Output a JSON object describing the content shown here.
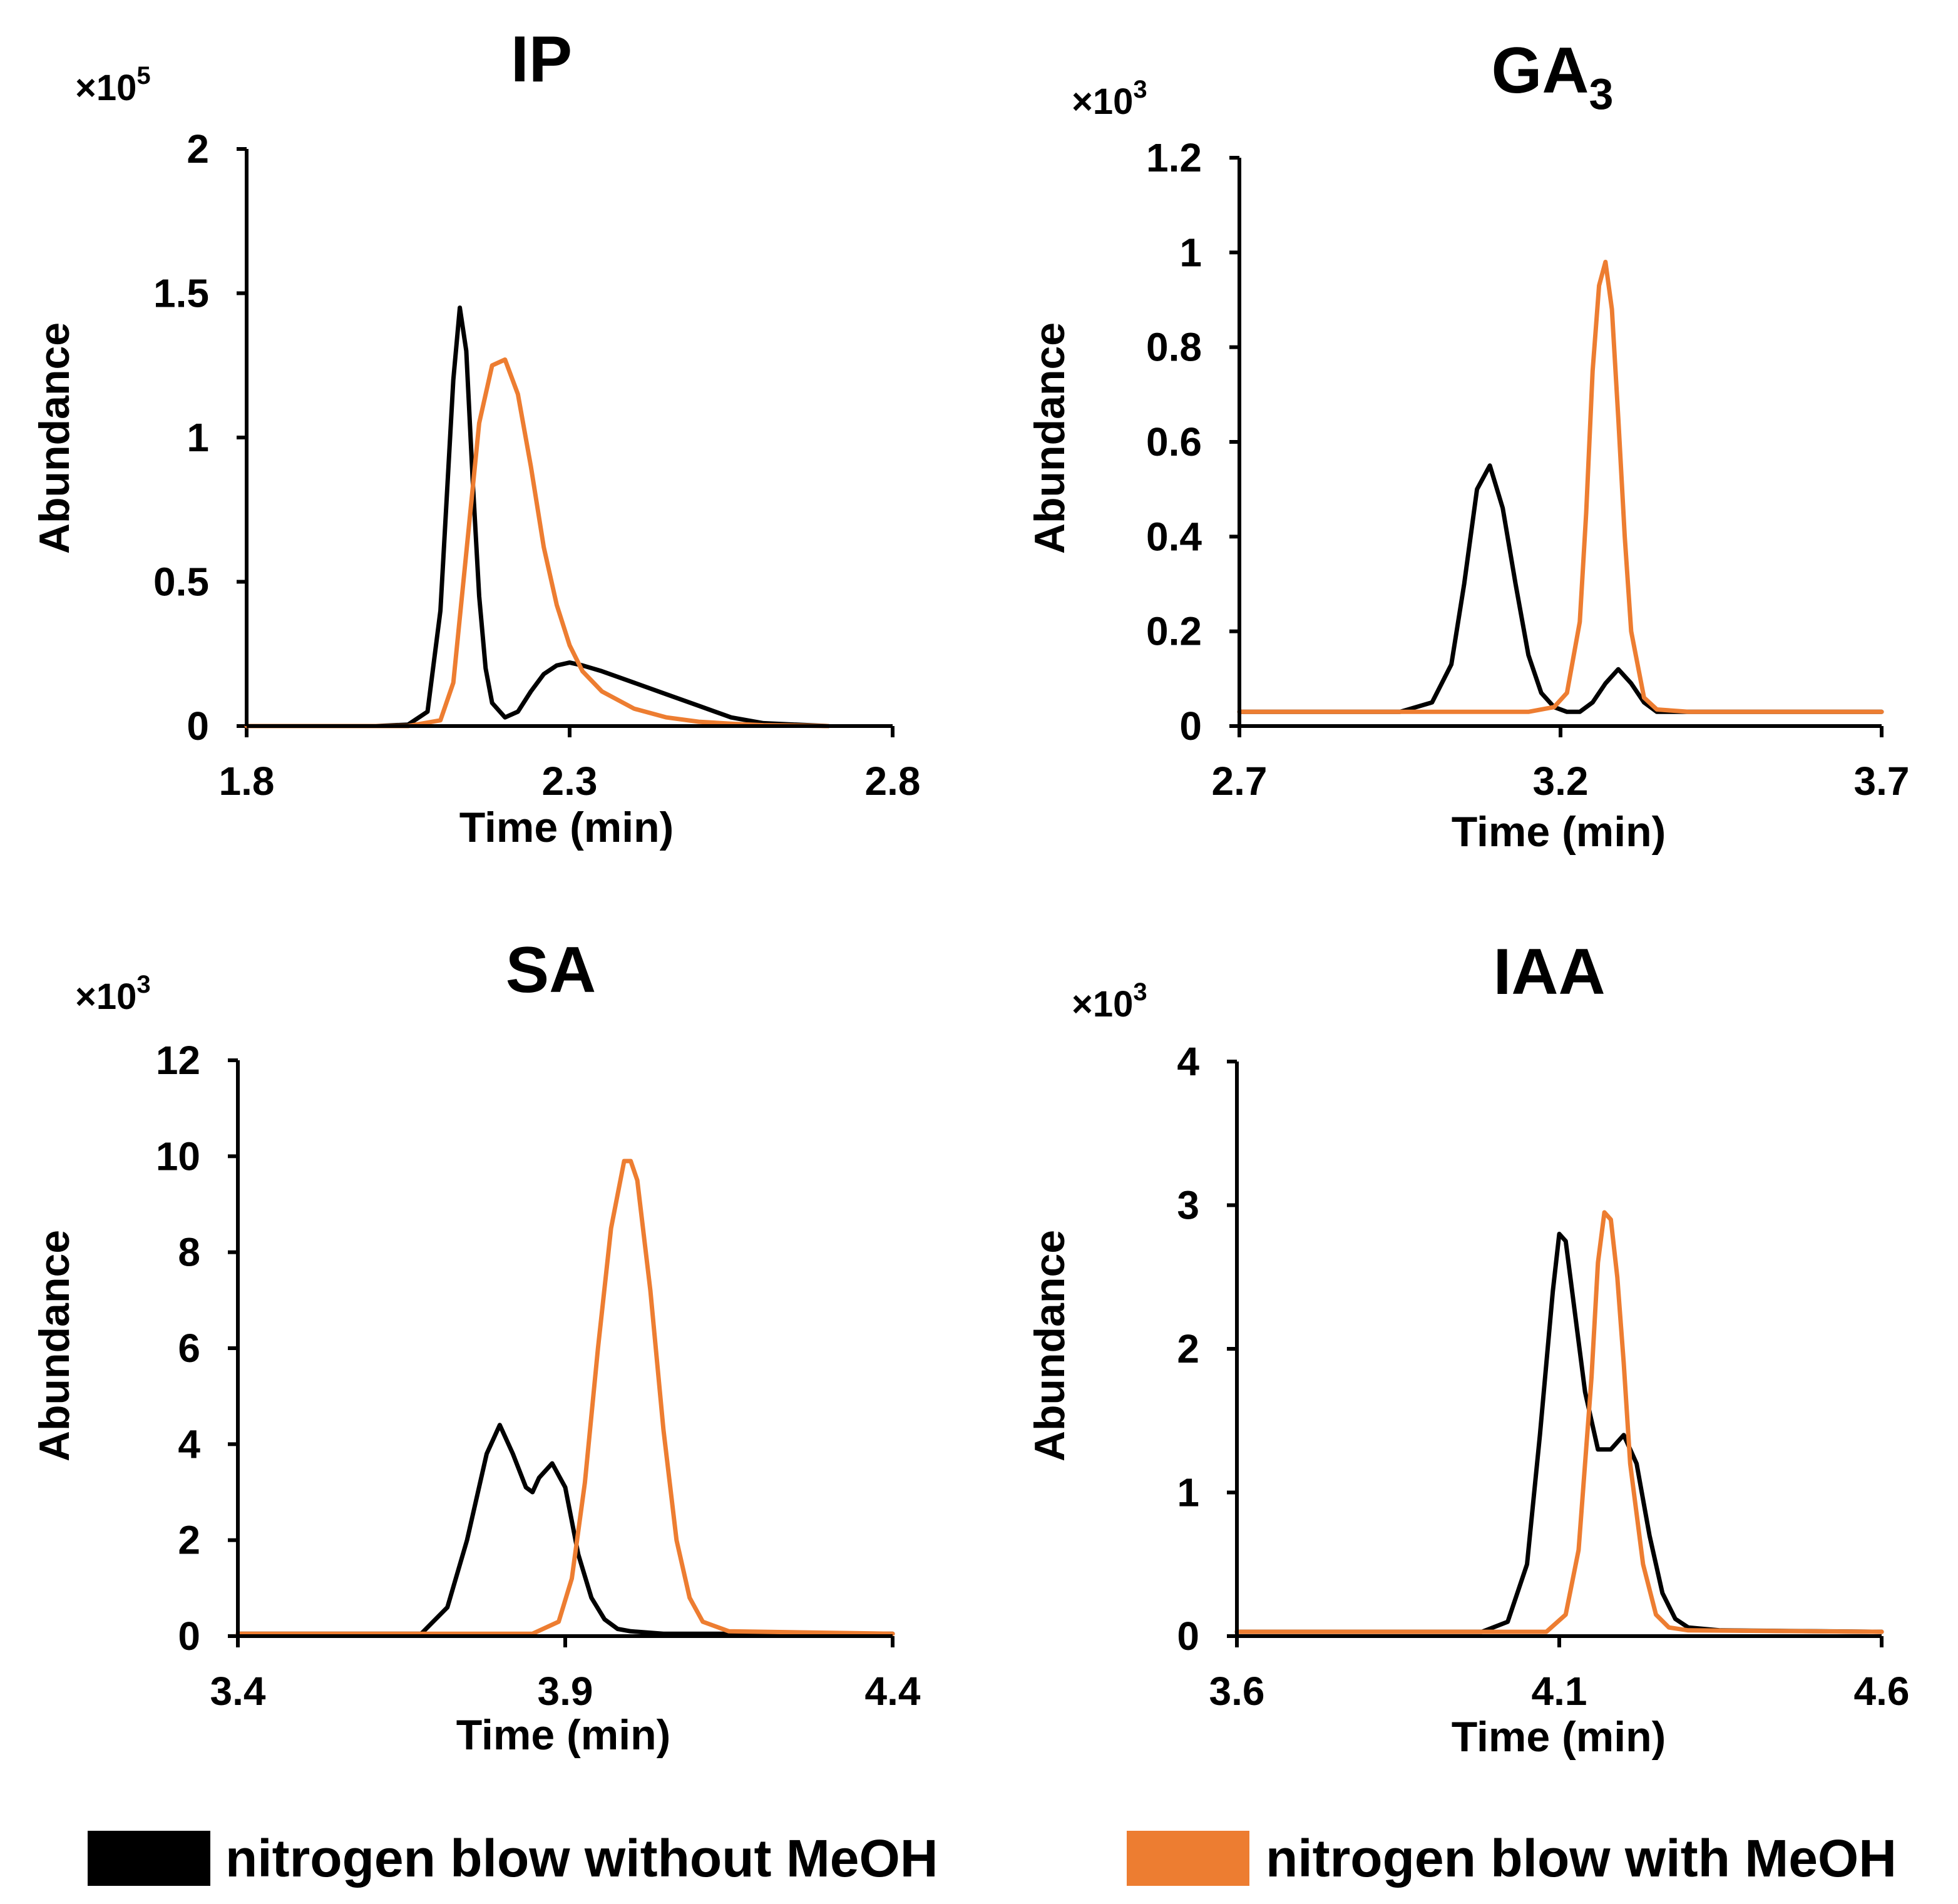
{
  "colors": {
    "without": "#000000",
    "with": "#ED7D31"
  },
  "legend": {
    "without_label": "nitrogen blow without MeOH",
    "with_label": "nitrogen blow with MeOH"
  },
  "chart_data": [
    {
      "type": "line",
      "title": "IP",
      "title_sub": "",
      "multiplier_base": "×10",
      "multiplier_exp": "5",
      "xlabel": "Time (min)",
      "ylabel": "Abundance",
      "xlim": [
        1.8,
        2.8
      ],
      "ylim": [
        0,
        2
      ],
      "xticks": [
        1.8,
        2.3,
        2.8
      ],
      "xtick_labels": [
        "1.8",
        "2.3",
        "2.8"
      ],
      "yticks": [
        0,
        0.5,
        1,
        1.5,
        2
      ],
      "ytick_labels": [
        "0",
        "0.5",
        "1",
        "1.5",
        "2"
      ],
      "series": [
        {
          "name": "nitrogen blow without MeOH",
          "color_key": "without",
          "x": [
            1.8,
            2.0,
            2.05,
            2.08,
            2.1,
            2.12,
            2.13,
            2.14,
            2.15,
            2.16,
            2.17,
            2.18,
            2.2,
            2.22,
            2.24,
            2.26,
            2.28,
            2.3,
            2.32,
            2.35,
            2.4,
            2.45,
            2.5,
            2.55,
            2.6,
            2.7
          ],
          "y": [
            0,
            0,
            0.005,
            0.05,
            0.4,
            1.2,
            1.45,
            1.3,
            0.85,
            0.45,
            0.2,
            0.08,
            0.03,
            0.05,
            0.12,
            0.18,
            0.21,
            0.22,
            0.21,
            0.19,
            0.15,
            0.11,
            0.07,
            0.03,
            0.01,
            0
          ]
        },
        {
          "name": "nitrogen blow with MeOH",
          "color_key": "with",
          "x": [
            1.8,
            2.05,
            2.1,
            2.12,
            2.14,
            2.16,
            2.18,
            2.2,
            2.22,
            2.24,
            2.26,
            2.28,
            2.3,
            2.32,
            2.35,
            2.4,
            2.45,
            2.5,
            2.55,
            2.6,
            2.7
          ],
          "y": [
            0,
            0,
            0.02,
            0.15,
            0.6,
            1.05,
            1.25,
            1.27,
            1.15,
            0.9,
            0.62,
            0.42,
            0.28,
            0.19,
            0.12,
            0.06,
            0.03,
            0.015,
            0.008,
            0.003,
            0
          ]
        }
      ]
    },
    {
      "type": "line",
      "title": "GA",
      "title_sub": "3",
      "multiplier_base": "×10",
      "multiplier_exp": "3",
      "xlabel": "Time (min)",
      "ylabel": "Abundance",
      "xlim": [
        2.7,
        3.7
      ],
      "ylim": [
        0,
        1.2
      ],
      "xticks": [
        2.7,
        3.2,
        3.7
      ],
      "xtick_labels": [
        "2.7",
        "3.2",
        "3.7"
      ],
      "yticks": [
        0,
        0.2,
        0.4,
        0.6,
        0.8,
        1,
        1.2
      ],
      "ytick_labels": [
        "0",
        "0.2",
        "0.4",
        "0.6",
        "0.8",
        "1",
        "1.2"
      ],
      "series": [
        {
          "name": "nitrogen blow without MeOH",
          "color_key": "without",
          "x": [
            2.7,
            2.95,
            3.0,
            3.03,
            3.05,
            3.07,
            3.09,
            3.11,
            3.13,
            3.15,
            3.17,
            3.19,
            3.21,
            3.23,
            3.25,
            3.27,
            3.29,
            3.31,
            3.33,
            3.35,
            3.4,
            3.7
          ],
          "y": [
            0.03,
            0.03,
            0.05,
            0.13,
            0.3,
            0.5,
            0.55,
            0.46,
            0.3,
            0.15,
            0.07,
            0.04,
            0.03,
            0.03,
            0.05,
            0.09,
            0.12,
            0.09,
            0.05,
            0.03,
            0.03,
            0.03
          ]
        },
        {
          "name": "nitrogen blow with MeOH",
          "color_key": "with",
          "x": [
            2.7,
            3.15,
            3.19,
            3.21,
            3.23,
            3.24,
            3.25,
            3.26,
            3.27,
            3.28,
            3.29,
            3.3,
            3.31,
            3.33,
            3.35,
            3.4,
            3.7
          ],
          "y": [
            0.03,
            0.03,
            0.04,
            0.07,
            0.22,
            0.45,
            0.75,
            0.93,
            0.98,
            0.88,
            0.65,
            0.4,
            0.2,
            0.06,
            0.035,
            0.03,
            0.03
          ]
        }
      ]
    },
    {
      "type": "line",
      "title": "SA",
      "title_sub": "",
      "multiplier_base": "×10",
      "multiplier_exp": "3",
      "xlabel": "Time (min)",
      "ylabel": "Abundance",
      "xlim": [
        3.4,
        4.4
      ],
      "ylim": [
        0,
        12
      ],
      "xticks": [
        3.4,
        3.9,
        4.4
      ],
      "xtick_labels": [
        "3.4",
        "3.9",
        "4.4"
      ],
      "yticks": [
        0,
        2,
        4,
        6,
        8,
        10,
        12
      ],
      "ytick_labels": [
        "0",
        "2",
        "4",
        "6",
        "8",
        "10",
        "12"
      ],
      "series": [
        {
          "name": "nitrogen blow without MeOH",
          "color_key": "without",
          "x": [
            3.4,
            3.68,
            3.72,
            3.75,
            3.78,
            3.8,
            3.82,
            3.84,
            3.85,
            3.86,
            3.88,
            3.9,
            3.92,
            3.94,
            3.96,
            3.98,
            4.0,
            4.05,
            4.1,
            4.4
          ],
          "y": [
            0.05,
            0.05,
            0.6,
            2.0,
            3.8,
            4.4,
            3.8,
            3.1,
            3.0,
            3.3,
            3.6,
            3.1,
            1.7,
            0.8,
            0.35,
            0.15,
            0.1,
            0.05,
            0.05,
            0.05
          ]
        },
        {
          "name": "nitrogen blow with MeOH",
          "color_key": "with",
          "x": [
            3.4,
            3.85,
            3.89,
            3.91,
            3.93,
            3.95,
            3.97,
            3.99,
            4.0,
            4.01,
            4.03,
            4.05,
            4.07,
            4.09,
            4.11,
            4.15,
            4.4
          ],
          "y": [
            0.05,
            0.05,
            0.3,
            1.2,
            3.2,
            6.0,
            8.5,
            9.9,
            9.9,
            9.5,
            7.2,
            4.3,
            2.0,
            0.8,
            0.3,
            0.1,
            0.05
          ]
        }
      ]
    },
    {
      "type": "line",
      "title": "IAA",
      "title_sub": "",
      "multiplier_base": "×10",
      "multiplier_exp": "3",
      "xlabel": "Time (min)",
      "ylabel": "Abundance",
      "xlim": [
        3.6,
        4.6
      ],
      "ylim": [
        0,
        4
      ],
      "xticks": [
        3.6,
        4.1,
        4.6
      ],
      "xtick_labels": [
        "3.6",
        "4.1",
        "4.6"
      ],
      "yticks": [
        0,
        1,
        2,
        3,
        4
      ],
      "ytick_labels": [
        "0",
        "1",
        "2",
        "3",
        "4"
      ],
      "series": [
        {
          "name": "nitrogen blow without MeOH",
          "color_key": "without",
          "x": [
            3.6,
            3.98,
            4.02,
            4.05,
            4.07,
            4.09,
            4.1,
            4.11,
            4.12,
            4.14,
            4.16,
            4.18,
            4.2,
            4.22,
            4.24,
            4.26,
            4.28,
            4.3,
            4.35,
            4.6
          ],
          "y": [
            0.03,
            0.03,
            0.1,
            0.5,
            1.4,
            2.4,
            2.8,
            2.75,
            2.4,
            1.7,
            1.3,
            1.3,
            1.4,
            1.2,
            0.7,
            0.3,
            0.12,
            0.06,
            0.04,
            0.03
          ]
        },
        {
          "name": "nitrogen blow with MeOH",
          "color_key": "with",
          "x": [
            3.6,
            4.08,
            4.11,
            4.13,
            4.15,
            4.16,
            4.17,
            4.18,
            4.19,
            4.2,
            4.21,
            4.23,
            4.25,
            4.27,
            4.3,
            4.6
          ],
          "y": [
            0.03,
            0.03,
            0.15,
            0.6,
            1.8,
            2.6,
            2.95,
            2.9,
            2.5,
            1.9,
            1.2,
            0.5,
            0.15,
            0.06,
            0.04,
            0.03
          ]
        }
      ]
    }
  ]
}
